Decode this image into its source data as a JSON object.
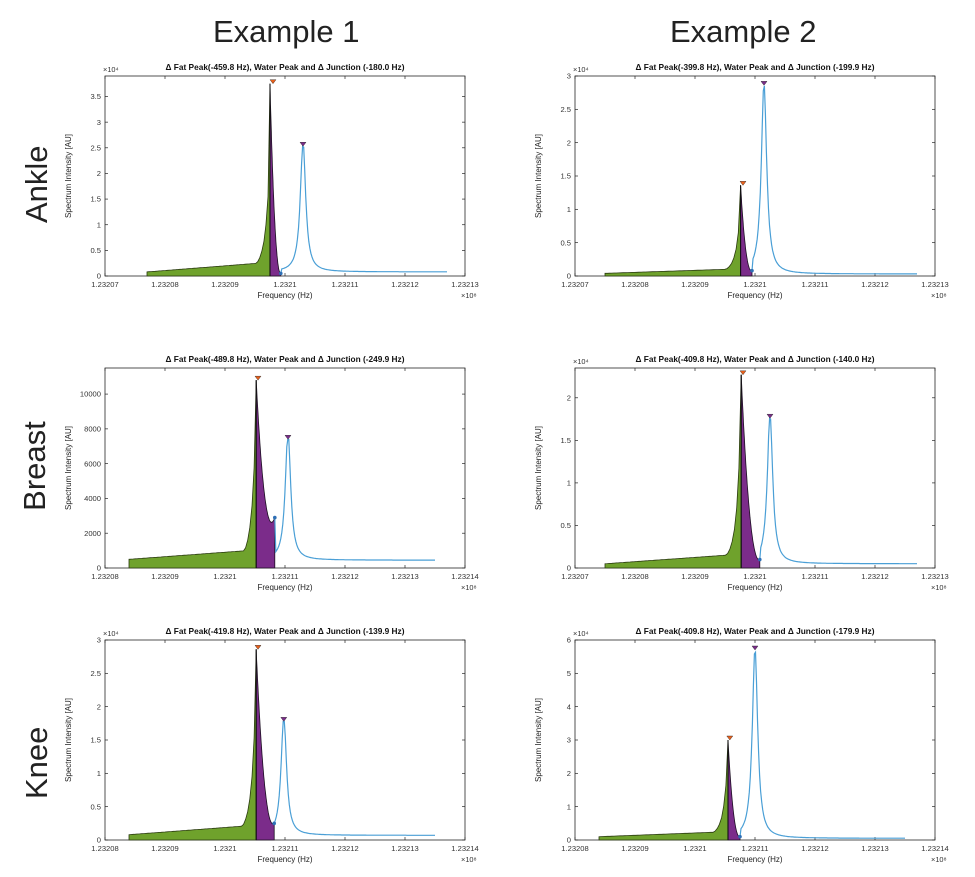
{
  "figure": {
    "column_titles": [
      "Example 1",
      "Example 2"
    ],
    "row_titles": [
      "Ankle",
      "Breast",
      "Knee"
    ]
  },
  "colors": {
    "fat_fill": "#6FA22C",
    "junction_fill": "#7B2C8A",
    "spectrum_line": "#4A9FD6",
    "fat_peak_marker": "#E8601C",
    "water_peak_marker": "#7B2C8A",
    "junction_marker": "#2E6FB5"
  },
  "chart_data": [
    {
      "type": "area",
      "region": "Ankle",
      "example": "Example 1",
      "title": "Δ Fat Peak(-459.8 Hz), Water Peak and Δ Junction (-180.0 Hz)",
      "xlabel": "Frequency (Hz)",
      "ylabel": "Spectrum Intensity [AU]",
      "x_exponent": "×10⁸",
      "y_exponent": "×10⁴",
      "xlim": [
        1.23207,
        1.23213
      ],
      "ylim": [
        0,
        3.9
      ],
      "xticks": [
        1.23207,
        1.23208,
        1.23209,
        1.2321,
        1.23211,
        1.23212,
        1.23213
      ],
      "xtick_labels": [
        "1.23207",
        "1.23208",
        "1.23209",
        "1.2321",
        "1.23211",
        "1.23212",
        "1.23213"
      ],
      "yticks": [
        0,
        0.5,
        1,
        1.5,
        2,
        2.5,
        3,
        3.5
      ],
      "ytick_labels": [
        "0",
        "0.5",
        "1",
        "1.5",
        "2",
        "2.5",
        "3",
        "3.5"
      ],
      "fat_peak": {
        "x": 1.232098,
        "y": 3.75
      },
      "water_peak": {
        "x": 1.232103,
        "y": 2.53
      },
      "junction": {
        "x": 1.2320993,
        "y": 0.05
      },
      "fat_series": {
        "x_start": 1.232077,
        "x_end": 1.2320975,
        "baseline": 0.08
      },
      "tail_end": {
        "x": 1.232127,
        "y": 0.08
      }
    },
    {
      "type": "area",
      "region": "Ankle",
      "example": "Example 2",
      "title": "Δ Fat Peak(-399.8 Hz), Water Peak and Δ Junction (-199.9 Hz)",
      "xlabel": "Frequency (Hz)",
      "ylabel": "Spectrum Intensity [AU]",
      "x_exponent": "×10⁸",
      "y_exponent": "×10⁴",
      "xlim": [
        1.23207,
        1.23213
      ],
      "ylim": [
        0,
        3.0
      ],
      "xticks": [
        1.23207,
        1.23208,
        1.23209,
        1.2321,
        1.23211,
        1.23212,
        1.23213
      ],
      "xtick_labels": [
        "1.23207",
        "1.23208",
        "1.23209",
        "1.2321",
        "1.23211",
        "1.23212",
        "1.23213"
      ],
      "yticks": [
        0,
        0.5,
        1,
        1.5,
        2,
        2.5,
        3
      ],
      "ytick_labels": [
        "0",
        "0.5",
        "1",
        "1.5",
        "2",
        "2.5",
        "3"
      ],
      "fat_peak": {
        "x": 1.232098,
        "y": 1.36
      },
      "water_peak": {
        "x": 1.2321015,
        "y": 2.86
      },
      "junction": {
        "x": 1.2320995,
        "y": 0.08
      },
      "fat_series": {
        "x_start": 1.232075,
        "x_end": 1.2320976,
        "baseline": 0.04
      },
      "tail_end": {
        "x": 1.232127,
        "y": 0.03
      }
    },
    {
      "type": "area",
      "region": "Breast",
      "example": "Example 1",
      "title": "Δ Fat Peak(-489.8 Hz), Water Peak and Δ Junction (-249.9 Hz)",
      "xlabel": "Frequency (Hz)",
      "ylabel": "Spectrum Intensity [AU]",
      "x_exponent": "×10⁸",
      "y_exponent": "",
      "xlim": [
        1.23208,
        1.23214
      ],
      "ylim": [
        0,
        11500
      ],
      "xticks": [
        1.23208,
        1.23209,
        1.2321,
        1.23211,
        1.23212,
        1.23213,
        1.23214
      ],
      "xtick_labels": [
        "1.23208",
        "1.23209",
        "1.2321",
        "1.23211",
        "1.23212",
        "1.23213",
        "1.23214"
      ],
      "yticks": [
        0,
        2000,
        4000,
        6000,
        8000,
        10000
      ],
      "ytick_labels": [
        "0",
        "2000",
        "4000",
        "6000",
        "8000",
        "10000"
      ],
      "fat_peak": {
        "x": 1.2321055,
        "y": 10800
      },
      "water_peak": {
        "x": 1.2321105,
        "y": 7400
      },
      "junction": {
        "x": 1.2321083,
        "y": 2900
      },
      "fat_series": {
        "x_start": 1.232084,
        "x_end": 1.2321052,
        "baseline": 500
      },
      "tail_end": {
        "x": 1.232135,
        "y": 450
      }
    },
    {
      "type": "area",
      "region": "Breast",
      "example": "Example 2",
      "title": "Δ Fat Peak(-409.8 Hz), Water Peak and Δ Junction (-140.0 Hz)",
      "xlabel": "Frequency (Hz)",
      "ylabel": "Spectrum Intensity [AU]",
      "x_exponent": "×10⁸",
      "y_exponent": "×10⁴",
      "xlim": [
        1.23207,
        1.23213
      ],
      "ylim": [
        0,
        2.35
      ],
      "xticks": [
        1.23207,
        1.23208,
        1.23209,
        1.2321,
        1.23211,
        1.23212,
        1.23213
      ],
      "xtick_labels": [
        "1.23207",
        "1.23208",
        "1.23209",
        "1.2321",
        "1.23211",
        "1.23212",
        "1.23213"
      ],
      "yticks": [
        0,
        0.5,
        1,
        1.5,
        2
      ],
      "ytick_labels": [
        "0",
        "0.5",
        "1",
        "1.5",
        "2"
      ],
      "fat_peak": {
        "x": 1.232098,
        "y": 2.27
      },
      "water_peak": {
        "x": 1.2321025,
        "y": 1.76
      },
      "junction": {
        "x": 1.2321008,
        "y": 0.1
      },
      "fat_series": {
        "x_start": 1.232075,
        "x_end": 1.2320977,
        "baseline": 0.05
      },
      "tail_end": {
        "x": 1.232127,
        "y": 0.05
      }
    },
    {
      "type": "area",
      "region": "Knee",
      "example": "Example 1",
      "title": "Δ Fat Peak(-419.8 Hz), Water Peak and Δ Junction (-139.9 Hz)",
      "xlabel": "Frequency (Hz)",
      "ylabel": "Spectrum Intensity [AU]",
      "x_exponent": "×10⁸",
      "y_exponent": "×10⁴",
      "xlim": [
        1.23208,
        1.23214
      ],
      "ylim": [
        0,
        3.0
      ],
      "xticks": [
        1.23208,
        1.23209,
        1.2321,
        1.23211,
        1.23212,
        1.23213,
        1.23214
      ],
      "xtick_labels": [
        "1.23208",
        "1.23209",
        "1.2321",
        "1.23211",
        "1.23212",
        "1.23213",
        "1.23214"
      ],
      "yticks": [
        0,
        0.5,
        1,
        1.5,
        2,
        2.5,
        3
      ],
      "ytick_labels": [
        "0",
        "0.5",
        "1",
        "1.5",
        "2",
        "2.5",
        "3"
      ],
      "fat_peak": {
        "x": 1.2321055,
        "y": 2.86
      },
      "water_peak": {
        "x": 1.2321098,
        "y": 1.78
      },
      "junction": {
        "x": 1.2321082,
        "y": 0.25
      },
      "fat_series": {
        "x_start": 1.232084,
        "x_end": 1.2321052,
        "baseline": 0.08
      },
      "tail_end": {
        "x": 1.232135,
        "y": 0.07
      }
    },
    {
      "type": "area",
      "region": "Knee",
      "example": "Example 2",
      "title": "Δ Fat Peak(-409.8 Hz), Water Peak and Δ Junction (-179.9 Hz)",
      "xlabel": "Frequency (Hz)",
      "ylabel": "Spectrum Intensity [AU]",
      "x_exponent": "×10⁸",
      "y_exponent": "×10⁴",
      "xlim": [
        1.23208,
        1.23214
      ],
      "ylim": [
        0,
        6.0
      ],
      "xticks": [
        1.23208,
        1.23209,
        1.2321,
        1.23211,
        1.23212,
        1.23213,
        1.23214
      ],
      "xtick_labels": [
        "1.23208",
        "1.23209",
        "1.2321",
        "1.23211",
        "1.23212",
        "1.23213",
        "1.23214"
      ],
      "yticks": [
        0,
        1,
        2,
        3,
        4,
        5,
        6
      ],
      "ytick_labels": [
        "0",
        "1",
        "2",
        "3",
        "4",
        "5",
        "6"
      ],
      "fat_peak": {
        "x": 1.2321058,
        "y": 3.0
      },
      "water_peak": {
        "x": 1.23211,
        "y": 5.7
      },
      "junction": {
        "x": 1.2321075,
        "y": 0.1
      },
      "fat_series": {
        "x_start": 1.232084,
        "x_end": 1.2321055,
        "baseline": 0.1
      },
      "tail_end": {
        "x": 1.232135,
        "y": 0.05
      }
    }
  ]
}
